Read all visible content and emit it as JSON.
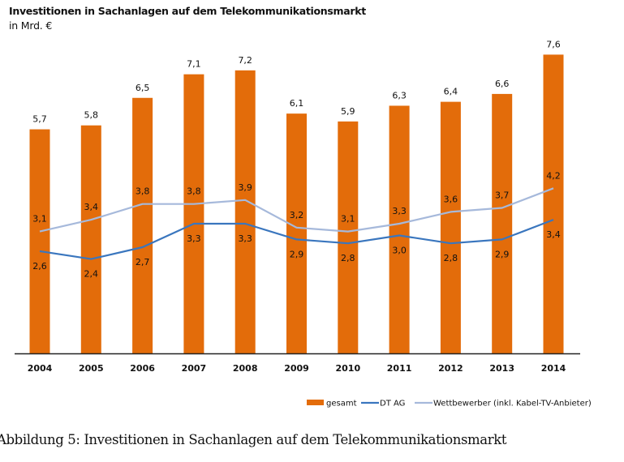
{
  "chart_data": {
    "type": "bar",
    "title": "Investitionen in Sachanlagen auf dem Telekommunikationsmarkt",
    "subtitle": "in Mrd. €",
    "xlabel": "",
    "ylabel": "",
    "ylim": [
      0,
      8
    ],
    "grid": false,
    "legend_position": "bottom-right",
    "categories": [
      "2004",
      "2005",
      "2006",
      "2007",
      "2008",
      "2009",
      "2010",
      "2011",
      "2012",
      "2013",
      "2014"
    ],
    "series": [
      {
        "name": "gesamt",
        "type": "bar",
        "color": "#E36C0A",
        "values": [
          5.7,
          5.8,
          6.5,
          7.1,
          7.2,
          6.1,
          5.9,
          6.3,
          6.4,
          6.6,
          7.6
        ],
        "labels": [
          "5,7",
          "5,8",
          "6,5",
          "7,1",
          "7,2",
          "6,1",
          "5,9",
          "6,3",
          "6,4",
          "6,6",
          "7,6"
        ]
      },
      {
        "name": "DT AG",
        "type": "line",
        "color": "#3A76BE",
        "values": [
          2.6,
          2.4,
          2.7,
          3.3,
          3.3,
          2.9,
          2.8,
          3.0,
          2.8,
          2.9,
          3.4
        ],
        "labels": [
          "2,6",
          "2,4",
          "2,7",
          "3,3",
          "3,3",
          "2,9",
          "2,8",
          "3,0",
          "2,8",
          "2,9",
          "3,4"
        ]
      },
      {
        "name": "Wettbewerber (inkl. Kabel-TV-Anbieter)",
        "type": "line",
        "color": "#A6B9DB",
        "values": [
          3.1,
          3.4,
          3.8,
          3.8,
          3.9,
          3.2,
          3.1,
          3.3,
          3.6,
          3.7,
          4.2
        ],
        "labels": [
          "3,1",
          "3,4",
          "3,8",
          "3,8",
          "3,9",
          "3,2",
          "3,1",
          "3,3",
          "3,6",
          "3,7",
          "4,2"
        ]
      }
    ]
  },
  "caption": "Abbildung 5: Investitionen in Sachanlagen auf dem Telekommunikationsmarkt"
}
